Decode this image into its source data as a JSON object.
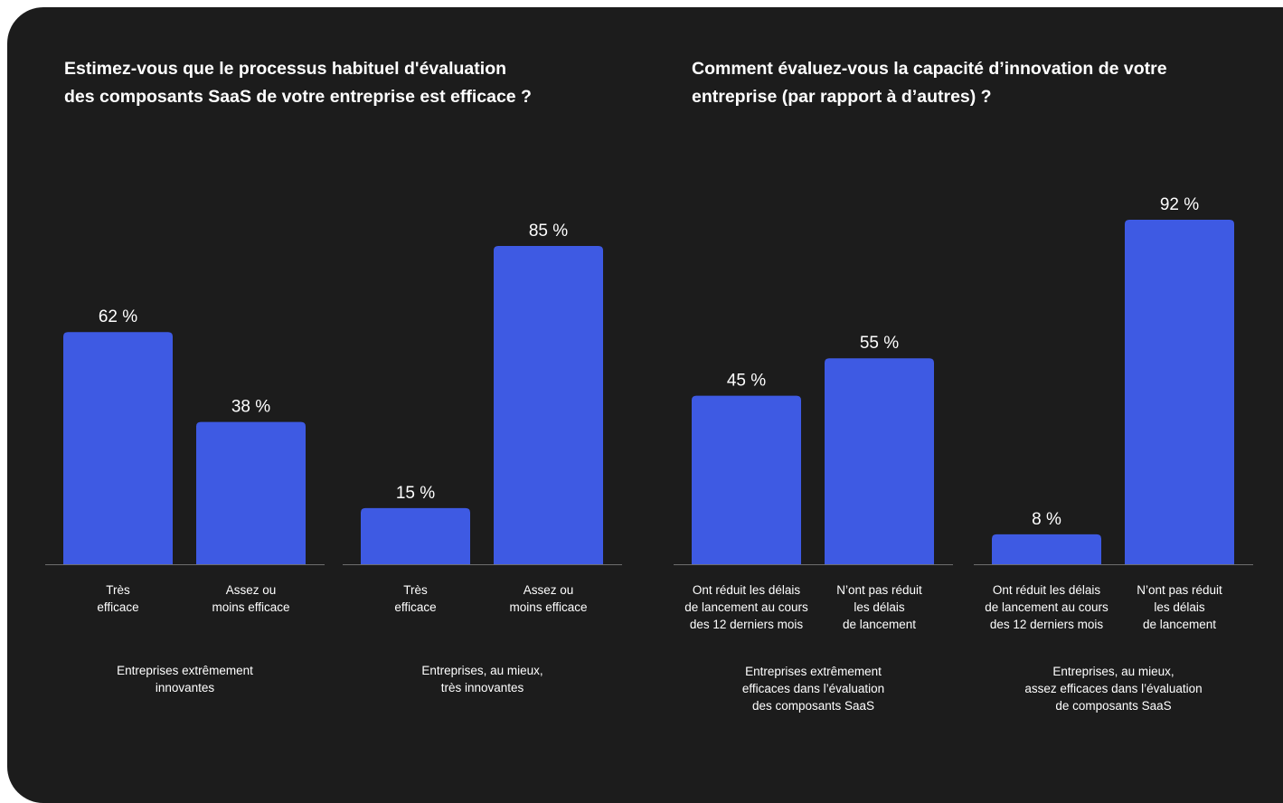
{
  "colors": {
    "background": "#1c1c1c",
    "bar": "#3e5ae3",
    "text": "#ffffff",
    "axis": "#6e6e6e"
  },
  "titles": {
    "left": [
      "Estimez-vous que le processus habituel d'évaluation",
      "des composants SaaS de votre entreprise est efficace ?"
    ],
    "right": [
      "Comment évaluez-vous la capacité d’innovation de votre",
      "entreprise (par rapport à d’autres) ?"
    ]
  },
  "chart_data": [
    {
      "type": "bar",
      "title": "Estimez-vous que le processus habituel d'évaluation des composants SaaS de votre entreprise est efficace ?",
      "ylim": [
        0,
        100
      ],
      "groups": [
        {
          "label": [
            "Entreprises extrêmement",
            "innovantes"
          ],
          "bars": [
            {
              "category": [
                "Très",
                "efficace"
              ],
              "value": 62,
              "label": "62 %"
            },
            {
              "category": [
                "Assez ou",
                "moins efficace"
              ],
              "value": 38,
              "label": "38 %"
            }
          ]
        },
        {
          "label": [
            "Entreprises, au mieux,",
            "très innovantes"
          ],
          "bars": [
            {
              "category": [
                "Très",
                "efficace"
              ],
              "value": 15,
              "label": "15 %"
            },
            {
              "category": [
                "Assez ou",
                "moins efficace"
              ],
              "value": 85,
              "label": "85 %"
            }
          ]
        }
      ]
    },
    {
      "type": "bar",
      "title": "Comment évaluez-vous la capacité d’innovation de votre entreprise (par rapport à d’autres) ?",
      "ylim": [
        0,
        100
      ],
      "groups": [
        {
          "label": [
            "Entreprises extrêmement",
            "efficaces dans l’évaluation",
            "des composants SaaS"
          ],
          "bars": [
            {
              "category": [
                "Ont réduit les délais",
                "de lancement au cours",
                "des 12 derniers mois"
              ],
              "value": 45,
              "label": "45 %"
            },
            {
              "category": [
                "N’ont pas réduit",
                "les délais",
                "de lancement"
              ],
              "value": 55,
              "label": "55 %"
            }
          ]
        },
        {
          "label": [
            "Entreprises, au mieux,",
            "assez efficaces dans l’évaluation",
            "de composants SaaS"
          ],
          "bars": [
            {
              "category": [
                "Ont réduit les délais",
                "de lancement au cours",
                "des 12 derniers mois"
              ],
              "value": 8,
              "label": "8 %"
            },
            {
              "category": [
                "N’ont pas réduit",
                "les délais",
                "de lancement"
              ],
              "value": 92,
              "label": "92 %"
            }
          ]
        }
      ]
    }
  ]
}
